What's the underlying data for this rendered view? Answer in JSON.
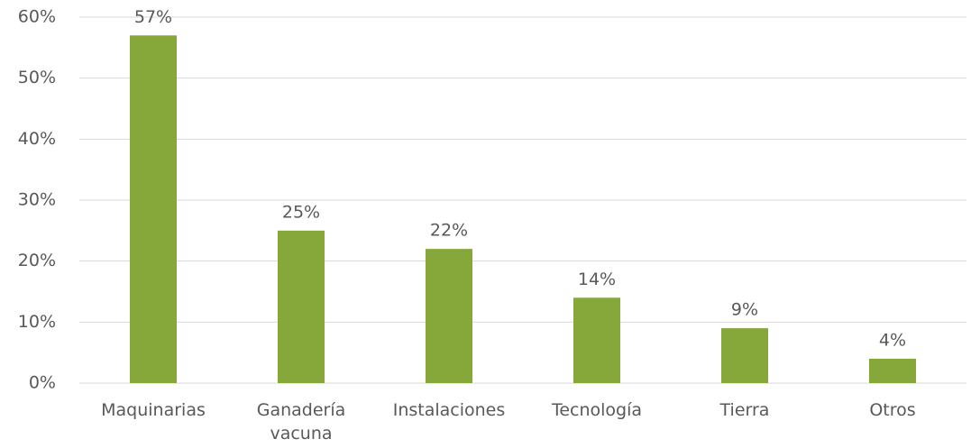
{
  "chart_data": {
    "type": "bar",
    "categories": [
      "Maquinarias",
      "Ganadería vacuna",
      "Instalaciones",
      "Tecnología",
      "Tierra",
      "Otros"
    ],
    "values": [
      57,
      25,
      22,
      14,
      9,
      4
    ],
    "value_labels": [
      "57%",
      "25%",
      "22%",
      "14%",
      "9%",
      "4%"
    ],
    "color": "#86a83a",
    "ylim": [
      0,
      60
    ],
    "yticks": [
      {
        "value": 0,
        "label": "0%"
      },
      {
        "value": 10,
        "label": "10%"
      },
      {
        "value": 20,
        "label": "20%"
      },
      {
        "value": 30,
        "label": "30%"
      },
      {
        "value": 40,
        "label": "40%"
      },
      {
        "value": 50,
        "label": "50%"
      },
      {
        "value": 60,
        "label": "60%"
      }
    ],
    "grid": true
  }
}
